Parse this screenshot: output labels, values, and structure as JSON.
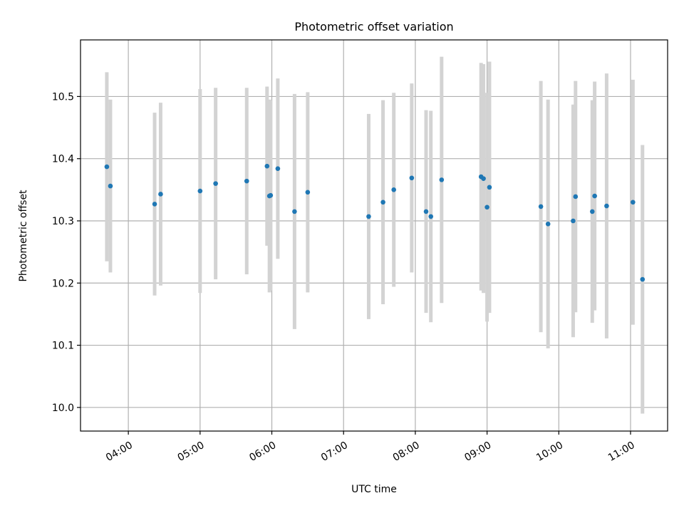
{
  "chart_data": {
    "type": "scatter",
    "title": "Photometric offset variation",
    "xlabel": "UTC time",
    "ylabel": "Photometric offset",
    "x_axis_type": "time",
    "xlim": [
      "03:20",
      "11:31"
    ],
    "ylim": [
      9.962,
      10.591
    ],
    "x_ticks": [
      "04:00",
      "05:00",
      "06:00",
      "07:00",
      "08:00",
      "09:00",
      "10:00",
      "11:00"
    ],
    "y_ticks": [
      10.0,
      10.1,
      10.2,
      10.3,
      10.4,
      10.5
    ],
    "y_tick_labels": [
      "10.0",
      "10.1",
      "10.2",
      "10.3",
      "10.4",
      "10.5"
    ],
    "grid": true,
    "colors": {
      "point": "#1f77b4",
      "errorbar": "#d3d3d3",
      "grid": "#b0b0b0"
    },
    "series": [
      {
        "points": [
          {
            "x": "03:42",
            "y": 10.387,
            "err": 0.152
          },
          {
            "x": "03:45",
            "y": 10.356,
            "err": 0.139
          },
          {
            "x": "04:22",
            "y": 10.327,
            "err": 0.147
          },
          {
            "x": "04:27",
            "y": 10.343,
            "err": 0.147
          },
          {
            "x": "05:00",
            "y": 10.348,
            "err": 0.164
          },
          {
            "x": "05:13",
            "y": 10.36,
            "err": 0.154
          },
          {
            "x": "05:39",
            "y": 10.364,
            "err": 0.15
          },
          {
            "x": "05:56",
            "y": 10.388,
            "err": 0.128
          },
          {
            "x": "05:58",
            "y": 10.34,
            "err": 0.155
          },
          {
            "x": "05:59",
            "y": 10.341,
            "err": 0.153
          },
          {
            "x": "06:05",
            "y": 10.384,
            "err": 0.145
          },
          {
            "x": "06:19",
            "y": 10.315,
            "err": 0.189
          },
          {
            "x": "06:30",
            "y": 10.346,
            "err": 0.161
          },
          {
            "x": "07:21",
            "y": 10.307,
            "err": 0.165
          },
          {
            "x": "07:33",
            "y": 10.33,
            "err": 0.164
          },
          {
            "x": "07:42",
            "y": 10.35,
            "err": 0.156
          },
          {
            "x": "07:57",
            "y": 10.369,
            "err": 0.152
          },
          {
            "x": "08:09",
            "y": 10.315,
            "err": 0.163
          },
          {
            "x": "08:13",
            "y": 10.307,
            "err": 0.17
          },
          {
            "x": "08:22",
            "y": 10.366,
            "err": 0.198
          },
          {
            "x": "08:55",
            "y": 10.371,
            "err": 0.183
          },
          {
            "x": "08:57",
            "y": 10.368,
            "err": 0.184
          },
          {
            "x": "09:00",
            "y": 10.322,
            "err": 0.184
          },
          {
            "x": "09:02",
            "y": 10.354,
            "err": 0.202
          },
          {
            "x": "09:45",
            "y": 10.323,
            "err": 0.202
          },
          {
            "x": "09:51",
            "y": 10.295,
            "err": 0.2
          },
          {
            "x": "10:12",
            "y": 10.3,
            "err": 0.187
          },
          {
            "x": "10:14",
            "y": 10.339,
            "err": 0.186
          },
          {
            "x": "10:28",
            "y": 10.315,
            "err": 0.179
          },
          {
            "x": "10:30",
            "y": 10.34,
            "err": 0.184
          },
          {
            "x": "10:40",
            "y": 10.324,
            "err": 0.213
          },
          {
            "x": "11:02",
            "y": 10.33,
            "err": 0.197
          },
          {
            "x": "11:10",
            "y": 10.206,
            "err": 0.216
          }
        ]
      }
    ]
  }
}
